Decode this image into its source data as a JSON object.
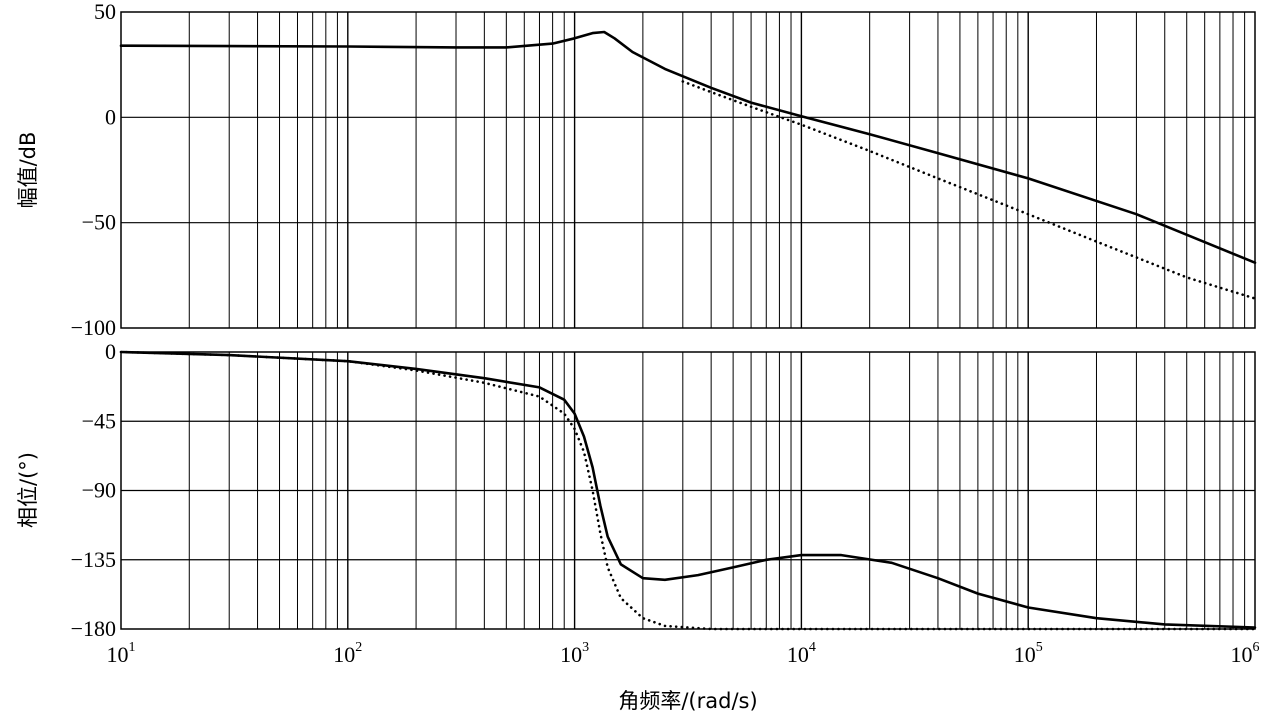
{
  "chart_data": [
    {
      "type": "line",
      "panel": "magnitude",
      "title": "",
      "xlabel": "",
      "ylabel": "幅值/dB",
      "xscale": "log",
      "xlim": [
        10,
        1000000
      ],
      "ylim": [
        -100,
        50
      ],
      "yticks": [
        50,
        0,
        -50,
        -100
      ],
      "ytick_labels": [
        "50",
        "0",
        "−50",
        "−100"
      ],
      "grid": true,
      "series": [
        {
          "style": "solid",
          "x": [
            10,
            30,
            100,
            300,
            500,
            800,
            1000,
            1200,
            1350,
            1500,
            1800,
            2500,
            4000,
            6000,
            10000,
            20000,
            40000,
            100000,
            300000,
            1000000
          ],
          "y": [
            34,
            33.8,
            33.6,
            33.2,
            33.2,
            35,
            37.5,
            40,
            40.5,
            37.5,
            31,
            23,
            14,
            7,
            0.5,
            -8,
            -17,
            -29,
            -46,
            -69
          ]
        },
        {
          "style": "dotted",
          "x": [
            3000,
            4000,
            6000,
            10000,
            20000,
            40000,
            100000,
            200000,
            500000,
            1000000
          ],
          "y": [
            17,
            12,
            5,
            -3.5,
            -16,
            -29,
            -46,
            -59,
            -76,
            -86
          ]
        }
      ]
    },
    {
      "type": "line",
      "panel": "phase",
      "title": "",
      "xlabel": "角频率/(rad/s)",
      "ylabel": "相位/(°)",
      "xscale": "log",
      "xlim": [
        10,
        1000000
      ],
      "ylim": [
        -180,
        0
      ],
      "yticks": [
        0,
        -45,
        -90,
        -135,
        -180
      ],
      "ytick_labels": [
        "0",
        "−45",
        "−90",
        "−135",
        "−180"
      ],
      "xticks": [
        10,
        100,
        1000,
        10000,
        100000,
        1000000
      ],
      "xtick_labels": [
        {
          "base": "10",
          "exp": "1"
        },
        {
          "base": "10",
          "exp": "2"
        },
        {
          "base": "10",
          "exp": "3"
        },
        {
          "base": "10",
          "exp": "4"
        },
        {
          "base": "10",
          "exp": "5"
        },
        {
          "base": "10",
          "exp": "6"
        }
      ],
      "grid": true,
      "series": [
        {
          "style": "solid",
          "x": [
            10,
            30,
            100,
            200,
            400,
            700,
            900,
            1000,
            1100,
            1200,
            1300,
            1400,
            1600,
            2000,
            2500,
            3500,
            5000,
            7000,
            10000,
            15000,
            25000,
            40000,
            60000,
            100000,
            200000,
            400000,
            1000000
          ],
          "y": [
            0,
            -2,
            -6,
            -11,
            -17,
            -23,
            -31,
            -40,
            -55,
            -75,
            -100,
            -120,
            -138,
            -147,
            -148,
            -145,
            -140,
            -135,
            -132,
            -132,
            -137,
            -147,
            -157,
            -166,
            -173,
            -177,
            -179
          ]
        },
        {
          "style": "dotted",
          "x": [
            10,
            30,
            100,
            200,
            400,
            700,
            900,
            1000,
            1100,
            1200,
            1300,
            1400,
            1600,
            2000,
            2500,
            4000,
            1000000
          ],
          "y": [
            0,
            -2,
            -6,
            -12,
            -20,
            -29,
            -40,
            -50,
            -65,
            -90,
            -118,
            -140,
            -160,
            -173,
            -178,
            -180,
            -180
          ]
        }
      ]
    }
  ]
}
